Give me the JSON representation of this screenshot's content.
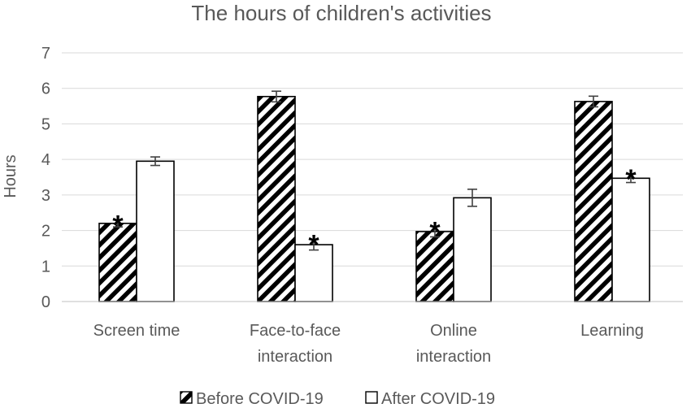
{
  "chart_data": {
    "type": "bar",
    "title": "The hours of children's activities",
    "ylabel": "Hours",
    "xlabel": "",
    "ylim": [
      0,
      7
    ],
    "yticks": [
      "0",
      "1",
      "2",
      "3",
      "4",
      "5",
      "6",
      "7"
    ],
    "grid": true,
    "legend_position": "bottom",
    "categories": [
      [
        "Screen time"
      ],
      [
        "Face-to-face",
        "interaction"
      ],
      [
        "Online",
        "interaction"
      ],
      [
        "Learning"
      ]
    ],
    "series": [
      {
        "name": "Before COVID-19",
        "pattern": "diagonal-hatch",
        "values": [
          2.2,
          5.77,
          1.97,
          5.63
        ],
        "errors": [
          0.1,
          0.15,
          0.15,
          0.15
        ],
        "significant": [
          true,
          false,
          true,
          false
        ]
      },
      {
        "name": "After COVID-19",
        "pattern": "solid-white",
        "values": [
          3.95,
          1.6,
          2.92,
          3.47
        ],
        "errors": [
          0.12,
          0.15,
          0.24,
          0.12
        ],
        "significant": [
          false,
          true,
          false,
          true
        ]
      }
    ],
    "significance_marker": "*",
    "colors": {
      "text": "#595959",
      "grid": "#d9d9d9",
      "bar_edge": "#000000"
    }
  }
}
